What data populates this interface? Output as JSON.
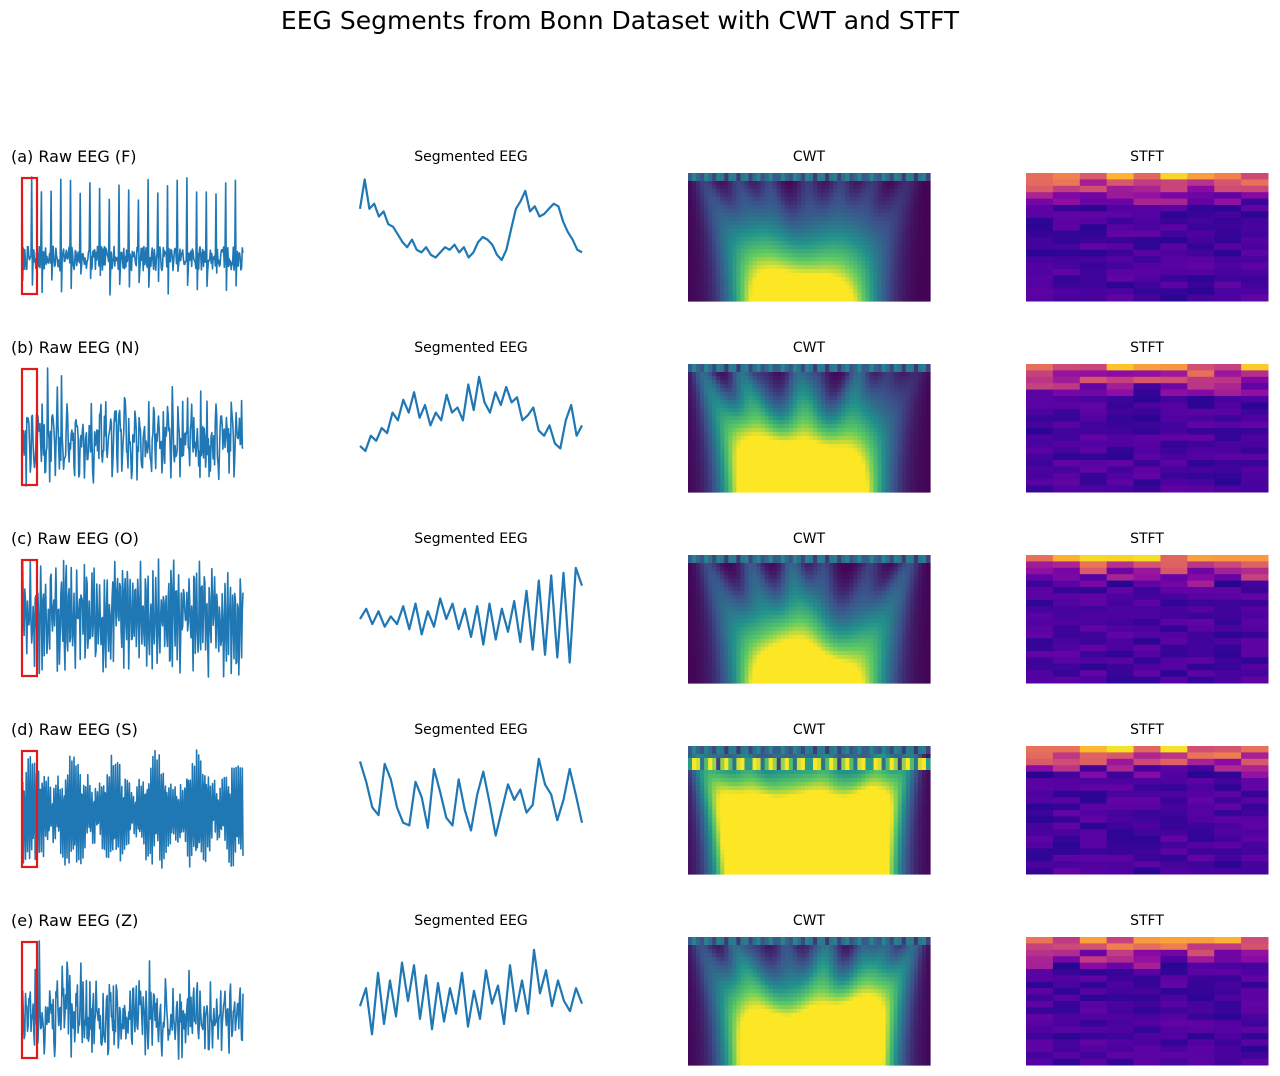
{
  "figure": {
    "title": "EEG Segments from Bonn Dataset with CWT and STFT"
  },
  "colors": {
    "signal": "#1f77b4",
    "highlight": "#e31a1c"
  },
  "panel_titles": {
    "segmented": "Segmented EEG",
    "cwt": "CWT",
    "stft": "STFT"
  },
  "rows": [
    {
      "label": "(a) Raw EEG (F)",
      "set": "F"
    },
    {
      "label": "(b) Raw EEG (N)",
      "set": "N"
    },
    {
      "label": "(c) Raw EEG (O)",
      "set": "O"
    },
    {
      "label": "(d) Raw EEG (S)",
      "set": "S"
    },
    {
      "label": "(e) Raw EEG (Z)",
      "set": "Z"
    }
  ],
  "chart_data": [
    {
      "type": "line",
      "panel": "raw-eeg-grid",
      "series": [
        {
          "name": "F",
          "style": "spiky",
          "highlighted_segment": "start"
        },
        {
          "name": "N",
          "style": "irregular",
          "highlighted_segment": "start"
        },
        {
          "name": "O",
          "style": "alpha-dense",
          "highlighted_segment": "start"
        },
        {
          "name": "S",
          "style": "seizure-rhythmic",
          "highlighted_segment": "start"
        },
        {
          "name": "Z",
          "style": "dense",
          "highlighted_segment": "start"
        }
      ],
      "axes": "off"
    },
    {
      "type": "line",
      "panel": "segmented-eeg",
      "series": [
        {
          "name": "F",
          "values": [
            0.72,
            0.95,
            0.72,
            0.76,
            0.66,
            0.7,
            0.6,
            0.58,
            0.52,
            0.46,
            0.42,
            0.48,
            0.4,
            0.38,
            0.42,
            0.36,
            0.34,
            0.38,
            0.42,
            0.4,
            0.44,
            0.38,
            0.42,
            0.34,
            0.38,
            0.46,
            0.5,
            0.48,
            0.44,
            0.36,
            0.32,
            0.4,
            0.56,
            0.72,
            0.78,
            0.86,
            0.7,
            0.74,
            0.66,
            0.68,
            0.72,
            0.76,
            0.74,
            0.62,
            0.54,
            0.48,
            0.4,
            0.38
          ]
        },
        {
          "name": "N",
          "values": [
            0.36,
            0.32,
            0.44,
            0.4,
            0.5,
            0.46,
            0.62,
            0.56,
            0.72,
            0.62,
            0.78,
            0.58,
            0.68,
            0.52,
            0.62,
            0.56,
            0.76,
            0.62,
            0.66,
            0.56,
            0.84,
            0.64,
            0.9,
            0.7,
            0.62,
            0.78,
            0.68,
            0.82,
            0.7,
            0.74,
            0.56,
            0.6,
            0.66,
            0.48,
            0.44,
            0.52,
            0.38,
            0.34,
            0.56,
            0.68,
            0.44,
            0.52
          ]
        },
        {
          "name": "O",
          "values": [
            0.5,
            0.58,
            0.46,
            0.56,
            0.44,
            0.52,
            0.46,
            0.6,
            0.42,
            0.62,
            0.38,
            0.56,
            0.44,
            0.66,
            0.5,
            0.62,
            0.42,
            0.58,
            0.36,
            0.6,
            0.3,
            0.62,
            0.34,
            0.58,
            0.4,
            0.64,
            0.32,
            0.72,
            0.26,
            0.8,
            0.22,
            0.84,
            0.2,
            0.86,
            0.16,
            0.9,
            0.76
          ]
        },
        {
          "name": "S",
          "values": [
            0.88,
            0.72,
            0.52,
            0.46,
            0.86,
            0.74,
            0.52,
            0.4,
            0.38,
            0.72,
            0.6,
            0.36,
            0.82,
            0.64,
            0.44,
            0.38,
            0.74,
            0.5,
            0.34,
            0.62,
            0.8,
            0.56,
            0.3,
            0.5,
            0.7,
            0.58,
            0.66,
            0.48,
            0.54,
            0.9,
            0.7,
            0.62,
            0.42,
            0.58,
            0.82,
            0.62,
            0.4
          ]
        },
        {
          "name": "Z",
          "values": [
            0.46,
            0.6,
            0.24,
            0.72,
            0.32,
            0.66,
            0.38,
            0.8,
            0.5,
            0.78,
            0.36,
            0.7,
            0.28,
            0.64,
            0.34,
            0.6,
            0.4,
            0.72,
            0.3,
            0.58,
            0.36,
            0.74,
            0.48,
            0.62,
            0.32,
            0.78,
            0.42,
            0.66,
            0.4,
            0.9,
            0.56,
            0.74,
            0.46,
            0.66,
            0.5,
            0.42,
            0.6,
            0.48
          ]
        }
      ],
      "axes": "off"
    },
    {
      "type": "heatmap",
      "panel": "cwt",
      "colormap": "viridis",
      "rows": [
        "F",
        "N",
        "O",
        "S",
        "Z"
      ],
      "axes": "off"
    },
    {
      "type": "heatmap",
      "panel": "stft",
      "colormap": "plasma",
      "rows": [
        "F",
        "N",
        "O",
        "S",
        "Z"
      ],
      "axes": "off"
    }
  ]
}
